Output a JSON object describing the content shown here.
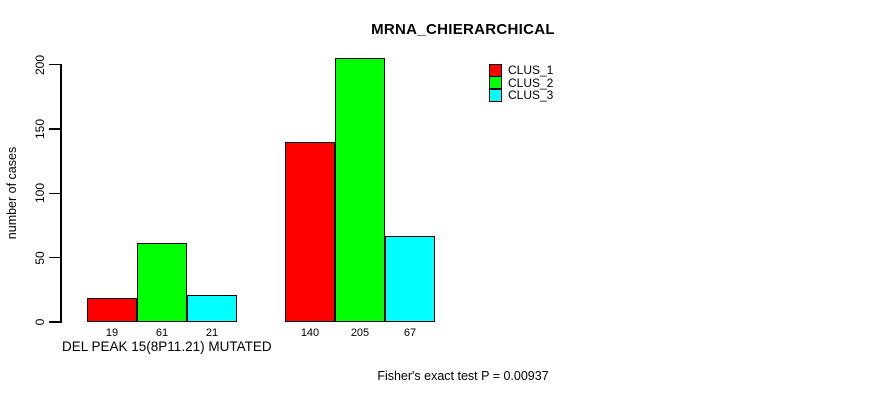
{
  "chart_data": {
    "type": "bar",
    "title": "MRNA_CHIERARCHICAL",
    "ylabel": "number of cases",
    "xlabel": "",
    "ylim": [
      0,
      205
    ],
    "yticks": [
      0,
      50,
      100,
      150,
      200
    ],
    "grid": false,
    "legend_position": "top-right",
    "categories": [
      "DEL PEAK 15(8P11.21) MUTATED",
      ""
    ],
    "series": [
      {
        "name": "CLUS_1",
        "color": "#ff0000",
        "values": [
          19,
          140
        ]
      },
      {
        "name": "CLUS_2",
        "color": "#00ff00",
        "values": [
          61,
          205
        ]
      },
      {
        "name": "CLUS_3",
        "color": "#00ffff",
        "values": [
          21,
          67
        ]
      }
    ],
    "bar_value_labels": [
      [
        19,
        61,
        21
      ],
      [
        140,
        205,
        67
      ]
    ],
    "annotation": "Fisher's exact test P = 0.00937",
    "axis_color": "#000000",
    "background_color": "#ffffff"
  }
}
